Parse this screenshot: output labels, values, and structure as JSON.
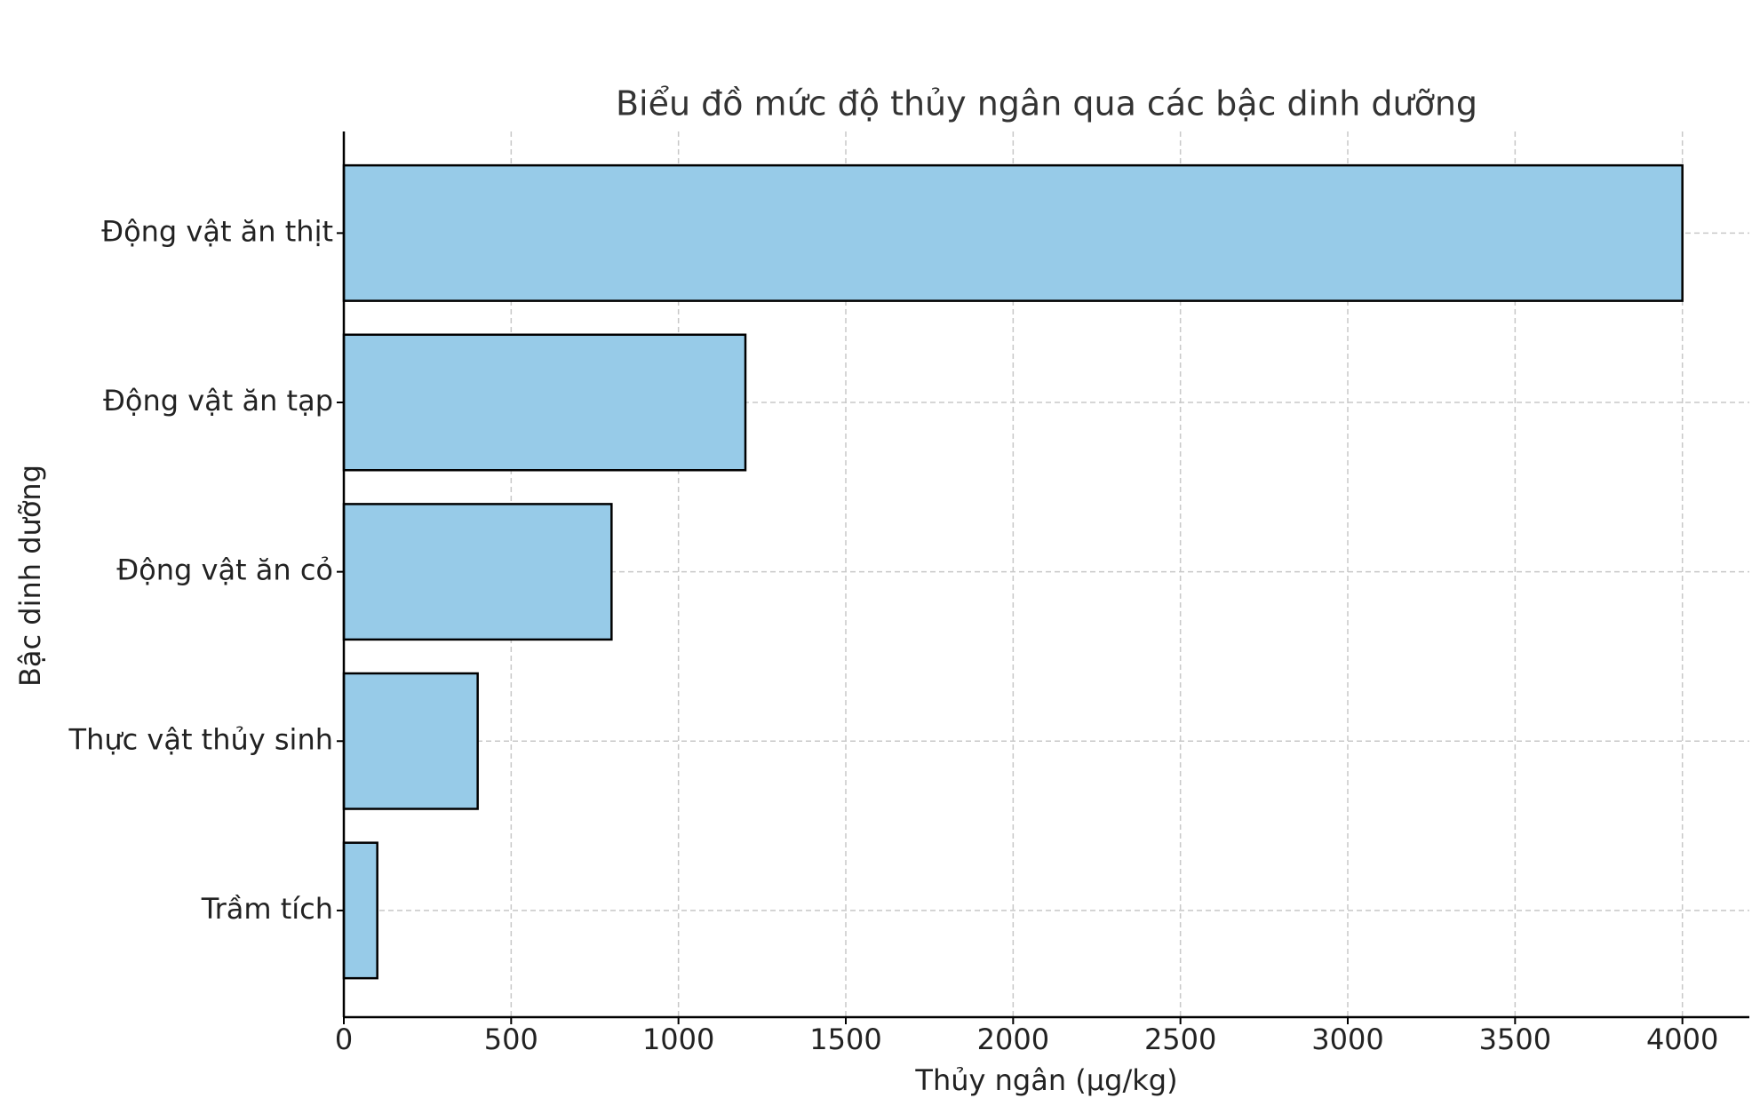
{
  "chart_data": {
    "type": "barh",
    "title": "Biểu đồ mức độ thủy ngân qua các bậc dinh dưỡng",
    "xlabel": "Thủy ngân (µg/kg)",
    "ylabel": "Bậc dinh dưỡng",
    "categories": [
      "Trầm tích",
      "Thực vật thủy sinh",
      "Động vật ăn cỏ",
      "Động vật ăn tạp",
      "Động vật ăn thịt"
    ],
    "values": [
      100,
      400,
      800,
      1200,
      4000
    ],
    "color": "#97cbe8",
    "edgecolor": "#000000",
    "xlim": [
      0,
      4200
    ],
    "xticks": [
      0,
      500,
      1000,
      1500,
      2000,
      2500,
      3000,
      3500,
      4000
    ],
    "grid": true
  }
}
